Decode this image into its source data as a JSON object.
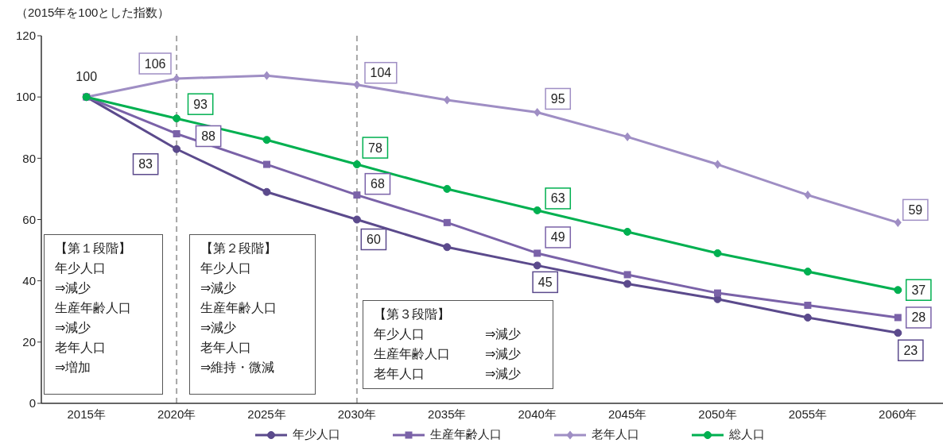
{
  "chart_data": {
    "type": "line",
    "ylabel": "（2015年を100とした指数）",
    "categories": [
      "2015年",
      "2020年",
      "2025年",
      "2030年",
      "2035年",
      "2040年",
      "2045年",
      "2050年",
      "2055年",
      "2060年"
    ],
    "series": [
      {
        "name": "年少人口",
        "color": "#5b4a8c",
        "marker": "circle",
        "values": [
          100,
          83,
          69,
          60,
          51,
          45,
          39,
          34,
          28,
          23
        ],
        "value_labels": [
          null,
          "83",
          null,
          "60",
          null,
          "45",
          null,
          null,
          null,
          "23"
        ]
      },
      {
        "name": "生産年齢人口",
        "color": "#7a62a8",
        "marker": "square",
        "values": [
          100,
          88,
          78,
          68,
          59,
          49,
          42,
          36,
          32,
          28
        ],
        "value_labels": [
          null,
          "88",
          null,
          "68",
          null,
          "49",
          null,
          null,
          null,
          "28"
        ]
      },
      {
        "name": "老年人口",
        "color": "#9f8ec4",
        "marker": "diamond",
        "values": [
          100,
          106,
          107,
          104,
          99,
          95,
          87,
          78,
          68,
          59
        ],
        "value_labels": [
          "100",
          "106",
          null,
          "104",
          null,
          "95",
          null,
          null,
          null,
          "59"
        ]
      },
      {
        "name": "総人口",
        "color": "#00b050",
        "marker": "circle",
        "values": [
          100,
          93,
          86,
          78,
          70,
          63,
          56,
          49,
          43,
          37
        ],
        "value_labels": [
          null,
          "93",
          null,
          "78",
          null,
          "63",
          null,
          null,
          null,
          "37"
        ]
      }
    ],
    "ylim": [
      0,
      120
    ],
    "yticks": [
      0,
      20,
      40,
      60,
      80,
      100,
      120
    ],
    "ref_lines": [
      {
        "axis": "x",
        "value": "2020年",
        "color": "#a6a6a6",
        "line_style": "dashed"
      },
      {
        "axis": "x",
        "value": "2030年",
        "color": "#a6a6a6",
        "line_style": "dashed"
      }
    ],
    "annotations": [
      "【第１段階】",
      "年少人口",
      "⇒減少",
      "生産年齢人口",
      "⇒減少",
      "老年人口",
      "⇒増加",
      "【第２段階】",
      "年少人口",
      "⇒減少",
      "生産年齢人口",
      "⇒減少",
      "老年人口",
      "⇒維持・微減",
      "【第３段階】",
      "年少人口",
      "⇒減少",
      "生産年齢人口",
      "⇒減少",
      "老年人口",
      "⇒減少"
    ],
    "legend": "bottom"
  }
}
